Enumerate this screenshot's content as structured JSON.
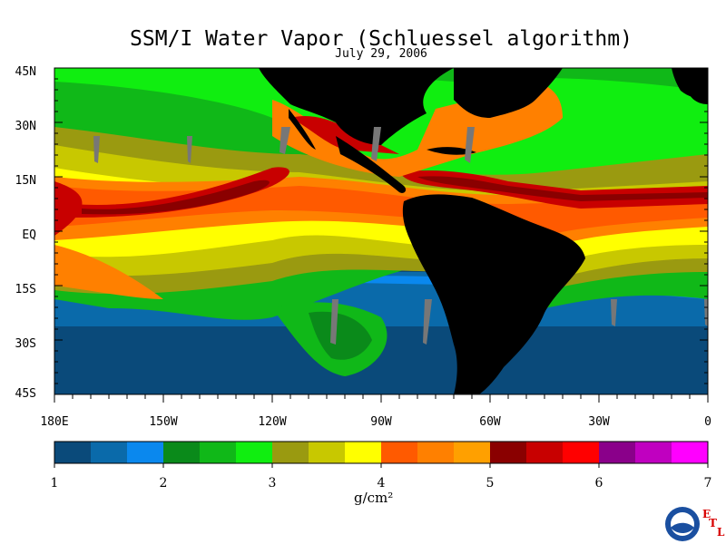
{
  "title": "SSM/I Water Vapor (Schluessel algorithm)",
  "date": "July 29, 2006",
  "lat_labels": [
    "45N",
    "30N",
    "15N",
    "EQ",
    "15S",
    "30S",
    "45S"
  ],
  "lon_labels": [
    "180E",
    "150W",
    "120W",
    "90W",
    "60W",
    "30W",
    "0"
  ],
  "colorbar": {
    "ticks": [
      "1",
      "2",
      "3",
      "4",
      "5",
      "6",
      "7"
    ],
    "unit": "g/cm²",
    "colors": [
      "#0a4a7a",
      "#0a6aaa",
      "#0a88ee",
      "#0a8a1a",
      "#10b818",
      "#10ee10",
      "#9a9a10",
      "#c8c800",
      "#ffff00",
      "#ff5a00",
      "#ff8000",
      "#ffa000",
      "#8a0000",
      "#c80000",
      "#ff0000",
      "#8a008a",
      "#c000c0",
      "#ff00ff"
    ]
  },
  "logo": {
    "text": "NOAA",
    "etl": [
      "E",
      "T",
      "L"
    ]
  },
  "colors": {
    "land": "#000000",
    "frame": "#000000"
  }
}
